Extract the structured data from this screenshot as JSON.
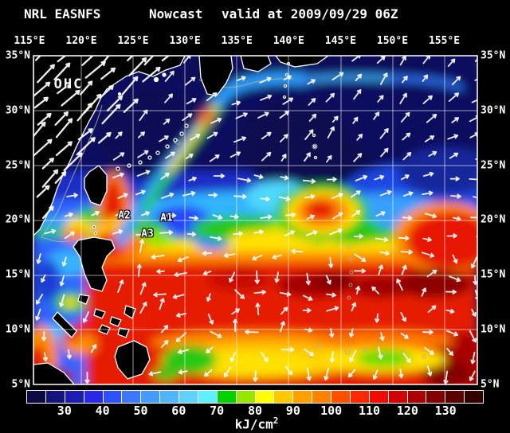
{
  "title": {
    "model": "NRL EASNFS",
    "product": "Nowcast",
    "valid": "valid at 2009/09/29 06Z"
  },
  "map": {
    "field_label": "OHC",
    "stations": [
      {
        "label": "A1"
      },
      {
        "label": "A2"
      },
      {
        "label": "A3"
      }
    ],
    "axes": {
      "top_longitude_labels": [
        "115°E",
        "120°E",
        "125°E",
        "130°E",
        "135°E",
        "140°E",
        "145°E",
        "150°E",
        "155°E"
      ],
      "left_latitude_labels": [
        "35°N",
        "30°N",
        "25°N",
        "20°N",
        "15°N",
        "10°N",
        "5°N"
      ],
      "right_latitude_labels": [
        "35°N",
        "30°N",
        "25°N",
        "20°N",
        "15°N",
        "10°N",
        "5°N"
      ]
    }
  },
  "colorbar": {
    "tick_labels": [
      "30",
      "40",
      "50",
      "60",
      "70",
      "80",
      "90",
      "100",
      "110",
      "120",
      "130"
    ],
    "units_base": "kJ/cm",
    "units_exponent": "2",
    "min_value": 20,
    "max_value": 140,
    "step": 5,
    "colors": [
      "#0a0a46",
      "#14147d",
      "#1c1cb4",
      "#2828e6",
      "#2d50ff",
      "#3c78ff",
      "#469bff",
      "#50b4ff",
      "#5fd2ff",
      "#5ff0ff",
      "#00d200",
      "#96e600",
      "#ffff00",
      "#ffc800",
      "#ffa000",
      "#ff8200",
      "#ff5000",
      "#ff2800",
      "#f00a00",
      "#d20000",
      "#aa0000",
      "#820000",
      "#5a0000",
      "#320000"
    ]
  },
  "chart_data": {
    "type": "heatmap",
    "title": "NRL EASNFS  Nowcast  valid at 2009/09/29 06Z",
    "field_label": "OHC",
    "units": "kJ/cm2",
    "x_tick_labels": [
      "115°E",
      "120°E",
      "125°E",
      "130°E",
      "135°E",
      "140°E",
      "145°E",
      "150°E",
      "155°E"
    ],
    "y_tick_labels": [
      "35°N",
      "30°N",
      "25°N",
      "20°N",
      "15°N",
      "10°N",
      "5°N"
    ],
    "colorbar_tick_labels": [
      30,
      40,
      50,
      60,
      70,
      80,
      90,
      100,
      110,
      120,
      130
    ],
    "colorbar_range": [
      20,
      140
    ],
    "colorbar_step": 5,
    "legend_position": "bottom",
    "grid": true,
    "annotations": [
      "OHC",
      "A1",
      "A2",
      "A3"
    ]
  }
}
